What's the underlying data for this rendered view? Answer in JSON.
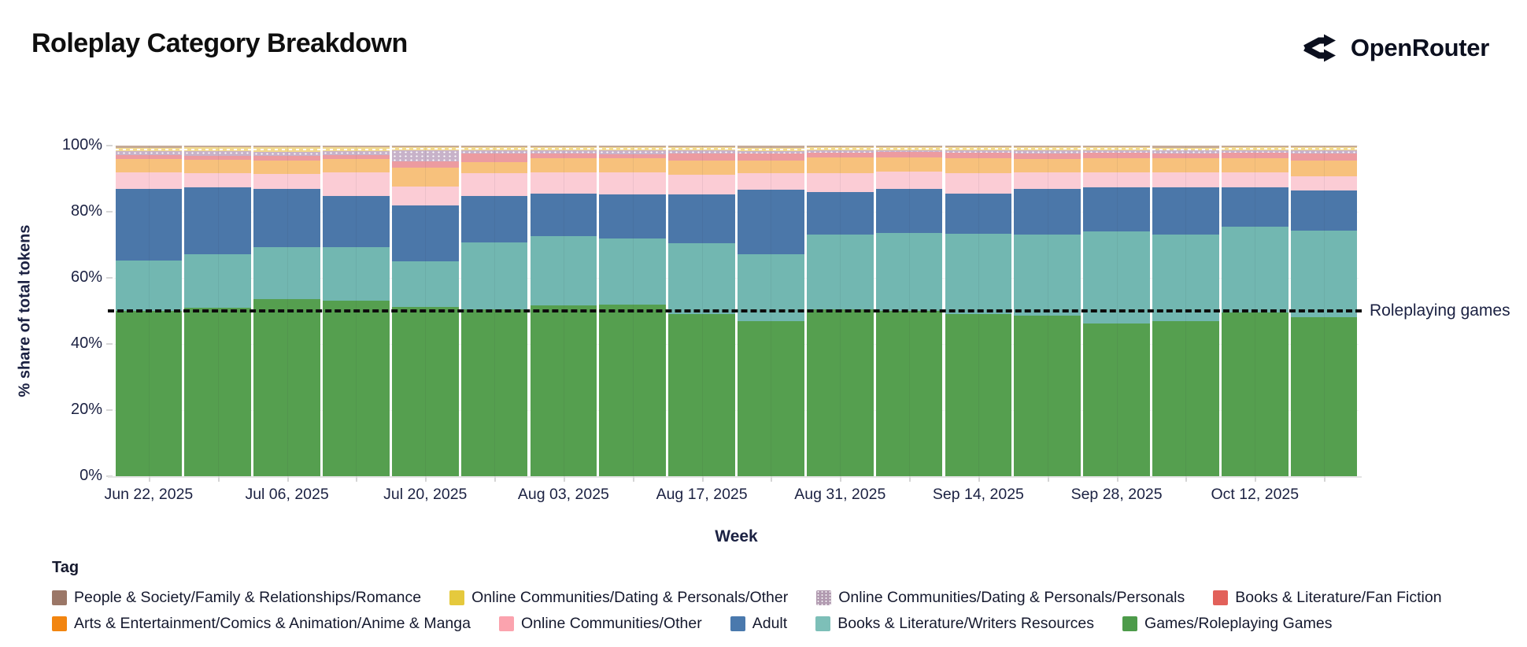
{
  "header": {
    "title": "Roleplay Category Breakdown",
    "brand": "OpenRouter"
  },
  "chart_data": {
    "type": "bar",
    "stacked": true,
    "normalized_percent": true,
    "title": "Roleplay Category Breakdown",
    "xlabel": "Week",
    "ylabel": "% share of total tokens",
    "ylim": [
      0,
      100
    ],
    "grid": "none",
    "legend_title": "Tag",
    "legend_position": "bottom",
    "y_tick_labels": [
      "0%",
      "20%",
      "40%",
      "60%",
      "80%",
      "100%"
    ],
    "y_tick_values": [
      0,
      20,
      40,
      60,
      80,
      100
    ],
    "x_tick_labels": [
      "Jun 22, 2025",
      "Jul 06, 2025",
      "Jul 20, 2025",
      "Aug 03, 2025",
      "Aug 17, 2025",
      "Aug 31, 2025",
      "Sep 14, 2025",
      "Sep 28, 2025",
      "Oct 12, 2025"
    ],
    "categories": [
      "Jun 22, 2025",
      "Jun 29, 2025",
      "Jul 06, 2025",
      "Jul 13, 2025",
      "Jul 20, 2025",
      "Jul 27, 2025",
      "Aug 03, 2025",
      "Aug 10, 2025",
      "Aug 17, 2025",
      "Aug 24, 2025",
      "Aug 31, 2025",
      "Sep 07, 2025",
      "Sep 14, 2025",
      "Sep 21, 2025",
      "Sep 28, 2025",
      "Oct 05, 2025",
      "Oct 12, 2025",
      "Oct 19, 2025"
    ],
    "annotation": {
      "text": "Roleplaying games",
      "y": 50,
      "line_style": "dashed",
      "line_color": "#0d0d0d"
    },
    "series": [
      {
        "name": "Games/Roleplaying Games",
        "bar_color": "#559f4f",
        "legend_color": "#4d9b4a",
        "pattern": "none",
        "values": [
          50.0,
          51.0,
          53.5,
          53.2,
          51.1,
          50.4,
          51.7,
          51.9,
          49.1,
          46.8,
          50.4,
          50.1,
          49.1,
          48.5,
          46.2,
          47.0,
          49.5,
          48.1
        ]
      },
      {
        "name": "Books & Literature/Writers Resources",
        "bar_color": "#72b7b1",
        "legend_color": "#7dbfb8",
        "pattern": "none",
        "values": [
          15.2,
          16.2,
          15.9,
          16.2,
          13.8,
          20.4,
          20.9,
          19.9,
          21.4,
          20.3,
          22.8,
          23.5,
          24.3,
          24.6,
          27.8,
          26.2,
          26.0,
          26.1
        ]
      },
      {
        "name": "Adult",
        "bar_color": "#4b77a9",
        "legend_color": "#4a79ad",
        "pattern": "none",
        "values": [
          21.8,
          20.1,
          17.5,
          15.4,
          17.1,
          13.9,
          12.9,
          13.5,
          14.7,
          19.5,
          12.7,
          13.2,
          12.1,
          13.8,
          13.5,
          14.1,
          12.0,
          12.3
        ]
      },
      {
        "name": "Online Communities/Other",
        "bar_color": "#fbccd5",
        "legend_color": "#fba3ae",
        "pattern": "none",
        "values": [
          4.9,
          4.3,
          4.5,
          7.2,
          5.7,
          6.9,
          6.3,
          6.5,
          5.9,
          5.0,
          5.7,
          5.4,
          6.1,
          4.9,
          4.5,
          4.7,
          4.5,
          4.2
        ]
      },
      {
        "name": "Arts & Entertainment/Comics & Animation/Anime & Manga",
        "bar_color": "#f7c17c",
        "legend_color": "#f28510",
        "pattern": "none",
        "values": [
          4.1,
          4.2,
          4.2,
          4.0,
          5.7,
          3.4,
          4.4,
          4.5,
          4.5,
          4.0,
          4.9,
          4.2,
          4.6,
          4.2,
          4.2,
          4.2,
          4.3,
          4.9
        ]
      },
      {
        "name": "Books & Literature/Fan Fiction",
        "bar_color": "#ec9ba0",
        "legend_color": "#e2615a",
        "pattern": "none",
        "values": [
          1.2,
          1.2,
          1.3,
          1.1,
          1.9,
          2.7,
          1.4,
          1.2,
          2.1,
          2.0,
          1.4,
          1.6,
          1.6,
          1.7,
          1.6,
          1.5,
          1.6,
          2.0
        ]
      },
      {
        "name": "Online Communities/Dating & Personals/Personals",
        "bar_color": "#c7b2c9",
        "legend_color": "#b29bb1",
        "pattern": "dots",
        "values": [
          1.1,
          1.3,
          1.3,
          1.2,
          3.3,
          0.9,
          0.9,
          1.0,
          0.9,
          0.7,
          0.7,
          0.7,
          0.8,
          0.8,
          0.8,
          0.8,
          0.7,
          0.9
        ]
      },
      {
        "name": "Online Communities/Dating & Personals/Other",
        "bar_color": "#f2d98d",
        "legend_color": "#e5c93d",
        "pattern": "dashes",
        "values": [
          1.1,
          1.2,
          1.3,
          1.2,
          0.9,
          1.0,
          1.0,
          1.0,
          1.0,
          1.0,
          1.0,
          0.9,
          1.0,
          1.0,
          1.0,
          0.9,
          1.0,
          1.0
        ]
      },
      {
        "name": "People & Society/Family & Relationships/Romance",
        "bar_color": "#c5aa97",
        "legend_color": "#9b7767",
        "pattern": "none",
        "values": [
          0.6,
          0.5,
          0.5,
          0.5,
          0.5,
          0.4,
          0.5,
          0.5,
          0.4,
          0.7,
          0.4,
          0.4,
          0.4,
          0.5,
          0.4,
          0.6,
          0.4,
          0.5
        ]
      }
    ]
  }
}
